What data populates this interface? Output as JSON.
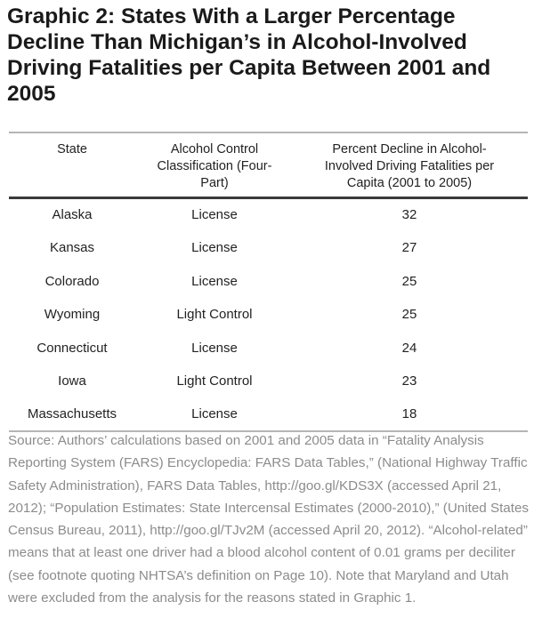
{
  "title": "Graphic 2: States With a Larger Percentage Decline Than Michigan’s in Alcohol-Involved Driving Fatalities per Capita Between 2001 and 2005",
  "table": {
    "headers": [
      "State",
      "Alcohol Control Classification (Four-Part)",
      "Percent Decline in Alcohol-Involved Driving Fatalities per Capita (2001 to 2005)"
    ],
    "rows": [
      [
        "Alaska",
        "License",
        "32"
      ],
      [
        "Kansas",
        "License",
        "27"
      ],
      [
        "Colorado",
        "License",
        "25"
      ],
      [
        "Wyoming",
        "Light Control",
        "25"
      ],
      [
        "Connecticut",
        "License",
        "24"
      ],
      [
        "Iowa",
        "Light Control",
        "23"
      ],
      [
        "Massachusetts",
        "License",
        "18"
      ]
    ]
  },
  "source": "Source: Authors’ calculations based on 2001 and 2005 data in “Fatality Analysis Reporting System (FARS) Encyclopedia: FARS Data Tables,” (National Highway Traffic Safety Administration), FARS Data Tables, http://goo.gl/KDS3X (accessed April 21, 2012); “Population Estimates: State Intercensal Estimates (2000-2010),” (United States Census Bureau, 2011), http://goo.gl/TJv2M (accessed April 20, 2012). “Alcohol-related” means that at least one driver had a blood alcohol content of 0.01 grams per deciliter (see footnote quoting NHTSA’s definition on Page 10). Note that Maryland and Utah were excluded from the analysis for the reasons stated in Graphic 1."
}
